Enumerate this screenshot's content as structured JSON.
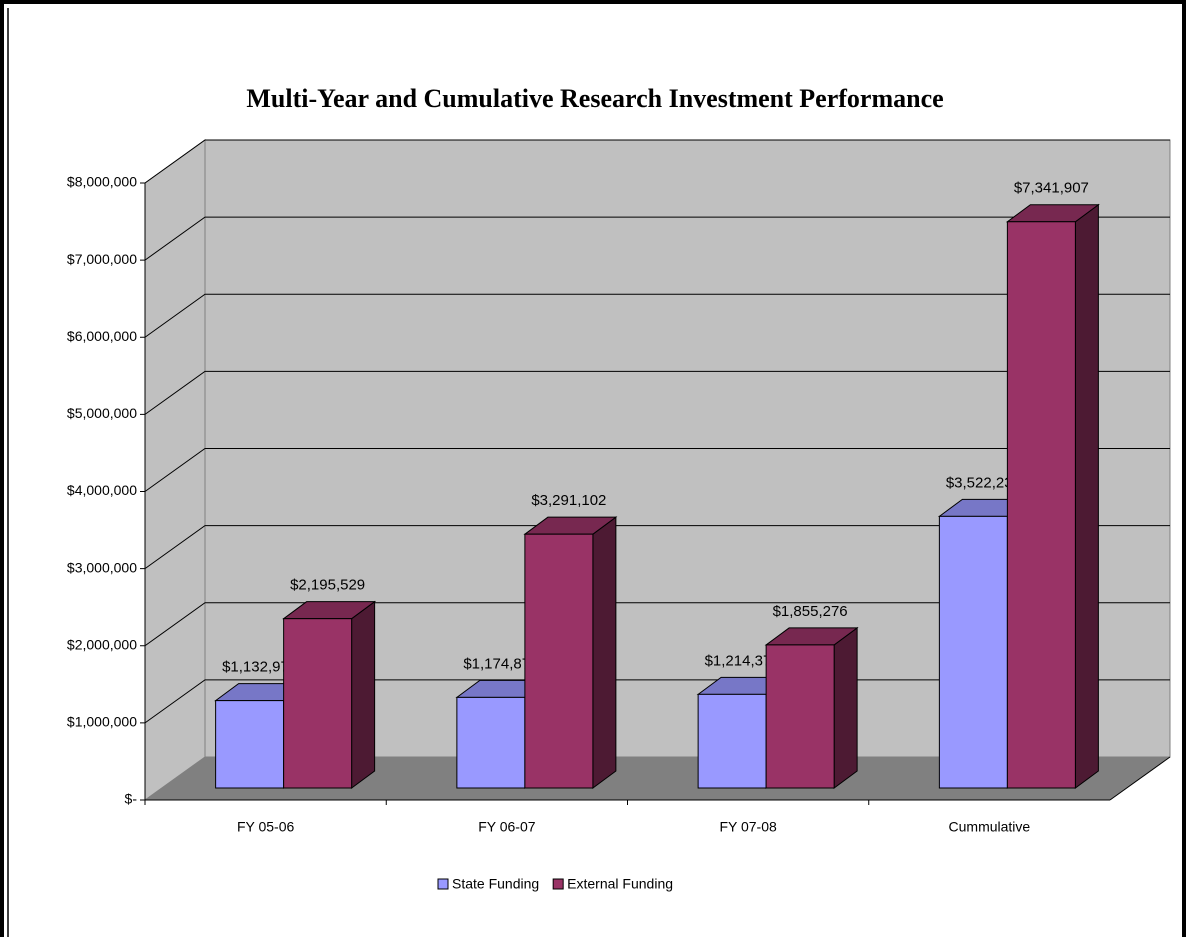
{
  "chart_data": {
    "type": "bar3d",
    "title": "Multi-Year and Cumulative Research Investment Performance",
    "categories": [
      "FY 05-06",
      "FY 06-07",
      "FY 07-08",
      "Cummulative"
    ],
    "series": [
      {
        "name": "State Funding",
        "color": "#9999ff",
        "values": [
          1132978,
          1174878,
          1214378,
          3522234
        ],
        "value_labels": [
          "$1,132,978",
          "$1,174,878",
          "$1,214,378",
          "$3,522,234"
        ]
      },
      {
        "name": "External Funding",
        "color": "#993366",
        "values": [
          2195529,
          3291102,
          1855276,
          7341907
        ],
        "value_labels": [
          "$2,195,529",
          "$3,291,102",
          "$1,855,276",
          "$7,341,907"
        ]
      }
    ],
    "ylim": [
      0,
      8000000
    ],
    "yticks": [
      {
        "value": 0,
        "label": "$-"
      },
      {
        "value": 1000000,
        "label": "$1,000,000"
      },
      {
        "value": 2000000,
        "label": "$2,000,000"
      },
      {
        "value": 3000000,
        "label": "$3,000,000"
      },
      {
        "value": 4000000,
        "label": "$4,000,000"
      },
      {
        "value": 5000000,
        "label": "$5,000,000"
      },
      {
        "value": 6000000,
        "label": "$6,000,000"
      },
      {
        "value": 7000000,
        "label": "$7,000,000"
      },
      {
        "value": 8000000,
        "label": "$8,000,000"
      }
    ],
    "grid": true,
    "legend": "bottom"
  }
}
